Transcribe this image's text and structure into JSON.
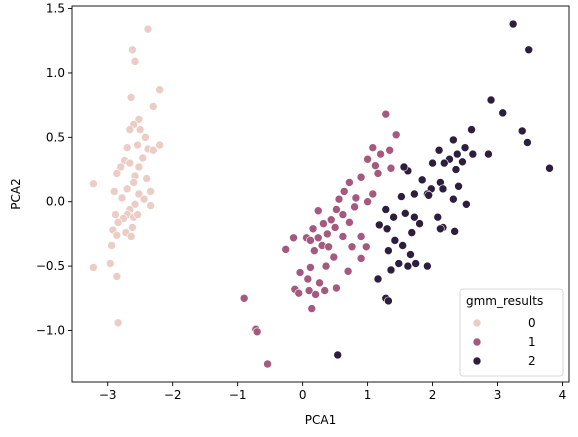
{
  "chart_data": {
    "type": "scatter",
    "title": "",
    "xlabel": "PCA1",
    "ylabel": "PCA2",
    "xlim": [
      -3.55,
      4.1
    ],
    "ylim": [
      -1.4,
      1.52
    ],
    "xticks": [
      -3,
      -2,
      -1,
      0,
      1,
      2,
      3,
      4
    ],
    "yticks": [
      -1.0,
      -0.5,
      0.0,
      0.5,
      1.0,
      1.5
    ],
    "xtick_labels": [
      "−3",
      "−2",
      "−1",
      "0",
      "1",
      "2",
      "3",
      "4"
    ],
    "ytick_labels": [
      "−1.0",
      "−0.5",
      "0.0",
      "0.5",
      "1.0",
      "1.5"
    ],
    "grid": false,
    "legend": {
      "title": "gmm_results",
      "placement": "lower-right"
    },
    "series": [
      {
        "name": "0",
        "color": "#ebcdc6",
        "points": [
          [
            -2.38,
            1.34
          ],
          [
            -2.62,
            1.18
          ],
          [
            -2.58,
            1.09
          ],
          [
            -2.64,
            0.81
          ],
          [
            -2.2,
            0.87
          ],
          [
            -2.3,
            0.74
          ],
          [
            -2.52,
            0.64
          ],
          [
            -2.6,
            0.6
          ],
          [
            -2.5,
            0.56
          ],
          [
            -2.66,
            0.56
          ],
          [
            -2.42,
            0.5
          ],
          [
            -2.7,
            0.42
          ],
          [
            -2.54,
            0.44
          ],
          [
            -2.38,
            0.41
          ],
          [
            -2.3,
            0.4
          ],
          [
            -2.2,
            0.44
          ],
          [
            -2.46,
            0.34
          ],
          [
            -2.74,
            0.32
          ],
          [
            -2.66,
            0.3
          ],
          [
            -2.8,
            0.27
          ],
          [
            -2.52,
            0.27
          ],
          [
            -2.58,
            0.2
          ],
          [
            -2.86,
            0.22
          ],
          [
            -2.6,
            0.15
          ],
          [
            -2.4,
            0.18
          ],
          [
            -2.7,
            0.1
          ],
          [
            -2.78,
            0.03
          ],
          [
            -3.22,
            0.14
          ],
          [
            -2.9,
            0.08
          ],
          [
            -2.34,
            0.08
          ],
          [
            -2.52,
            0.06
          ],
          [
            -2.44,
            0.02
          ],
          [
            -2.58,
            -0.02
          ],
          [
            -2.66,
            -0.06
          ],
          [
            -2.88,
            -0.1
          ],
          [
            -2.7,
            -0.1
          ],
          [
            -2.34,
            -0.03
          ],
          [
            -2.6,
            -0.12
          ],
          [
            -2.76,
            -0.13
          ],
          [
            -2.54,
            -0.1
          ],
          [
            -2.84,
            -0.16
          ],
          [
            -2.62,
            -0.2
          ],
          [
            -2.92,
            -0.22
          ],
          [
            -2.72,
            -0.24
          ],
          [
            -2.86,
            -0.26
          ],
          [
            -2.64,
            -0.27
          ],
          [
            -2.94,
            -0.34
          ],
          [
            -2.96,
            -0.48
          ],
          [
            -3.22,
            -0.51
          ],
          [
            -2.86,
            -0.58
          ],
          [
            -2.84,
            -0.94
          ]
        ]
      },
      {
        "name": "1",
        "color": "#a5597e",
        "points": [
          [
            1.28,
            0.68
          ],
          [
            1.44,
            0.52
          ],
          [
            1.08,
            0.42
          ],
          [
            1.2,
            0.37
          ],
          [
            1.34,
            0.4
          ],
          [
            1.0,
            0.33
          ],
          [
            1.12,
            0.28
          ],
          [
            1.36,
            0.26
          ],
          [
            1.16,
            0.22
          ],
          [
            0.72,
            0.15
          ],
          [
            0.9,
            0.19
          ],
          [
            0.64,
            0.08
          ],
          [
            1.08,
            0.06
          ],
          [
            0.82,
            0.03
          ],
          [
            0.56,
            0.02
          ],
          [
            1.0,
            0.0
          ],
          [
            0.8,
            -0.04
          ],
          [
            0.52,
            -0.06
          ],
          [
            0.62,
            -0.1
          ],
          [
            0.24,
            -0.07
          ],
          [
            0.44,
            -0.14
          ],
          [
            0.72,
            -0.16
          ],
          [
            0.32,
            -0.17
          ],
          [
            0.5,
            -0.2
          ],
          [
            0.16,
            -0.21
          ],
          [
            0.38,
            -0.25
          ],
          [
            0.06,
            -0.28
          ],
          [
            0.24,
            -0.28
          ],
          [
            0.62,
            -0.27
          ],
          [
            0.9,
            -0.27
          ],
          [
            -0.14,
            -0.28
          ],
          [
            0.12,
            -0.3
          ],
          [
            0.3,
            -0.34
          ],
          [
            0.4,
            -0.35
          ],
          [
            0.76,
            -0.35
          ],
          [
            0.98,
            -0.35
          ],
          [
            0.18,
            -0.38
          ],
          [
            -0.26,
            -0.37
          ],
          [
            0.48,
            -0.43
          ],
          [
            0.9,
            -0.44
          ],
          [
            0.12,
            -0.51
          ],
          [
            0.7,
            -0.54
          ],
          [
            0.36,
            -0.5
          ],
          [
            0.26,
            -0.63
          ],
          [
            0.08,
            -0.6
          ],
          [
            -0.04,
            -0.55
          ],
          [
            -0.12,
            -0.68
          ],
          [
            0.1,
            -0.69
          ],
          [
            0.34,
            -0.69
          ],
          [
            0.2,
            -0.72
          ],
          [
            -0.06,
            -0.71
          ],
          [
            0.52,
            -0.67
          ],
          [
            0.14,
            -0.83
          ],
          [
            -0.9,
            -0.75
          ],
          [
            -0.72,
            -0.99
          ],
          [
            -0.7,
            -1.01
          ],
          [
            -0.54,
            -1.26
          ]
        ]
      },
      {
        "name": "2",
        "color": "#2d1e3e",
        "points": [
          [
            3.24,
            1.38
          ],
          [
            3.48,
            1.18
          ],
          [
            2.9,
            0.79
          ],
          [
            3.08,
            0.69
          ],
          [
            3.38,
            0.55
          ],
          [
            3.46,
            0.46
          ],
          [
            2.6,
            0.56
          ],
          [
            2.32,
            0.48
          ],
          [
            2.5,
            0.42
          ],
          [
            2.1,
            0.4
          ],
          [
            2.38,
            0.37
          ],
          [
            2.62,
            0.37
          ],
          [
            2.86,
            0.37
          ],
          [
            2.26,
            0.33
          ],
          [
            2.46,
            0.31
          ],
          [
            2.0,
            0.3
          ],
          [
            2.18,
            0.3
          ],
          [
            2.36,
            0.25
          ],
          [
            3.8,
            0.26
          ],
          [
            1.62,
            0.24
          ],
          [
            1.56,
            0.27
          ],
          [
            1.84,
            0.17
          ],
          [
            2.12,
            0.15
          ],
          [
            2.4,
            0.12
          ],
          [
            1.98,
            0.1
          ],
          [
            2.16,
            0.1
          ],
          [
            2.32,
            0.02
          ],
          [
            1.72,
            0.06
          ],
          [
            1.92,
            0.06
          ],
          [
            1.94,
            0.05
          ],
          [
            2.52,
            -0.02
          ],
          [
            1.52,
            0.04
          ],
          [
            1.28,
            -0.06
          ],
          [
            1.58,
            -0.09
          ],
          [
            1.4,
            -0.12
          ],
          [
            1.72,
            -0.12
          ],
          [
            2.08,
            -0.12
          ],
          [
            1.8,
            -0.17
          ],
          [
            1.18,
            -0.18
          ],
          [
            1.3,
            -0.21
          ],
          [
            2.16,
            -0.2
          ],
          [
            2.34,
            -0.23
          ],
          [
            1.68,
            -0.24
          ],
          [
            2.12,
            -0.21
          ],
          [
            1.42,
            -0.3
          ],
          [
            1.54,
            -0.34
          ],
          [
            1.32,
            -0.38
          ],
          [
            1.66,
            -0.41
          ],
          [
            1.74,
            -0.48
          ],
          [
            1.48,
            -0.48
          ],
          [
            1.36,
            -0.53
          ],
          [
            1.62,
            -0.5
          ],
          [
            1.92,
            -0.5
          ],
          [
            1.16,
            -0.6
          ],
          [
            1.28,
            -0.75
          ],
          [
            1.32,
            -0.77
          ],
          [
            0.54,
            -1.19
          ]
        ]
      }
    ]
  }
}
